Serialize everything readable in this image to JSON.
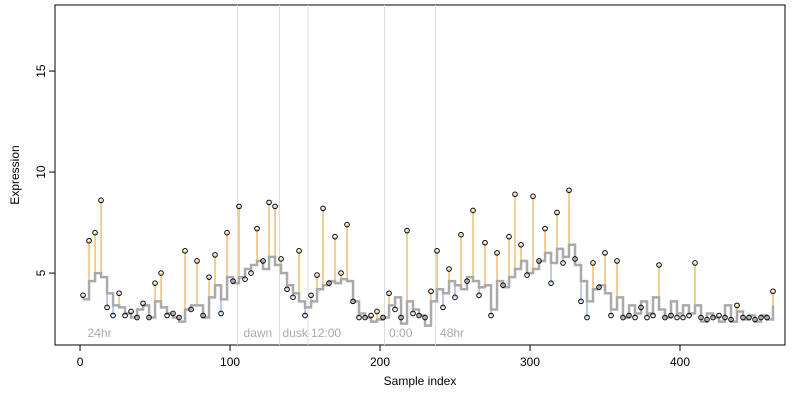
{
  "chart_data": {
    "type": "scatter",
    "xlabel": "Sample index",
    "ylabel": "Expression",
    "xlim": [
      -16.7,
      470
    ],
    "ylim": [
      1.44,
      18.27
    ],
    "xticks": [
      0,
      100,
      200,
      300,
      400
    ],
    "yticks": [
      5,
      10,
      15
    ],
    "grid": false,
    "step_line": true,
    "above_color": "#e8a020",
    "below_color": "#6f9ad8",
    "vline_color": "#dddddd",
    "vlines": [
      105,
      133,
      152,
      203,
      237
    ],
    "annotations": [
      {
        "text": "24hr",
        "x": 3
      },
      {
        "text": "dawn",
        "x": 107
      },
      {
        "text": "dusk",
        "x": 133
      },
      {
        "text": "12:00",
        "x": 152
      },
      {
        "text": "0:00",
        "x": 204
      },
      {
        "text": "48hr",
        "x": 238
      }
    ],
    "x": [
      2,
      6,
      10,
      14,
      18,
      22,
      26,
      30,
      34,
      38,
      42,
      46,
      50,
      54,
      58,
      62,
      66,
      70,
      74,
      78,
      82,
      86,
      90,
      94,
      98,
      102,
      106,
      110,
      114,
      118,
      122,
      126,
      130,
      134,
      138,
      142,
      146,
      150,
      154,
      158,
      162,
      166,
      170,
      174,
      178,
      182,
      186,
      190,
      194,
      198,
      202,
      206,
      210,
      214,
      218,
      222,
      226,
      230,
      234,
      238,
      242,
      246,
      250,
      254,
      258,
      262,
      266,
      270,
      274,
      278,
      282,
      286,
      290,
      294,
      298,
      302,
      306,
      310,
      314,
      318,
      322,
      326,
      330,
      334,
      338,
      342,
      346,
      350,
      354,
      358,
      362,
      366,
      370,
      374,
      378,
      382,
      386,
      390,
      394,
      398,
      402,
      406,
      410,
      414,
      418,
      422,
      426,
      430,
      434,
      438,
      442,
      446,
      450,
      454,
      458,
      462
    ],
    "series": [
      {
        "color": "#aaaaaa",
        "values": [
          3.7,
          4.6,
          5.0,
          4.8,
          4.0,
          3.4,
          3.3,
          3.0,
          2.8,
          3.2,
          3.4,
          2.8,
          3.6,
          3.3,
          3.0,
          2.8,
          2.6,
          3.2,
          3.4,
          3.4,
          2.8,
          3.8,
          4.4,
          3.7,
          4.8,
          4.5,
          4.8,
          5.2,
          5.4,
          5.6,
          5.2,
          5.8,
          5.4,
          5.0,
          4.4,
          4.0,
          3.6,
          3.3,
          3.6,
          4.2,
          4.4,
          4.6,
          4.5,
          4.7,
          4.6,
          3.6,
          3.0,
          2.8,
          2.6,
          2.7,
          2.8,
          3.4,
          3.8,
          2.5,
          3.6,
          3.2,
          2.9,
          2.4,
          3.6,
          4.2,
          4.0,
          4.6,
          4.4,
          4.2,
          4.8,
          4.6,
          4.3,
          4.4,
          3.2,
          4.6,
          4.3,
          4.8,
          5.2,
          5.6,
          5.0,
          5.2,
          5.6,
          6.0,
          5.5,
          6.2,
          5.8,
          6.4,
          5.4,
          4.6,
          3.6,
          4.2,
          4.4,
          4.0,
          3.2,
          3.8,
          2.8,
          3.4,
          3.0,
          3.6,
          3.0,
          3.8,
          3.2,
          2.8,
          3.6,
          3.0,
          3.4,
          3.0,
          3.4,
          2.6,
          3.0,
          2.8,
          2.6,
          3.4,
          2.6,
          3.1,
          2.7,
          2.9,
          2.6,
          2.9,
          2.7,
          3.4
        ]
      },
      {
        "color": "#000000",
        "values": [
          3.9,
          6.6,
          7.0,
          8.6,
          3.3,
          2.9,
          4.0,
          2.9,
          3.1,
          2.8,
          3.5,
          2.8,
          4.5,
          5.0,
          2.9,
          3.0,
          2.8,
          6.1,
          3.2,
          5.6,
          2.9,
          4.8,
          5.9,
          3.0,
          7.0,
          4.6,
          8.3,
          4.7,
          5.0,
          7.2,
          5.6,
          8.5,
          8.3,
          5.7,
          4.2,
          3.8,
          6.1,
          2.9,
          3.9,
          4.9,
          8.2,
          4.5,
          6.8,
          5.0,
          7.4,
          3.6,
          2.8,
          2.8,
          2.9,
          3.1,
          2.8,
          4.0,
          3.2,
          2.8,
          7.1,
          3.0,
          2.9,
          2.8,
          4.1,
          6.1,
          3.3,
          5.2,
          3.8,
          6.9,
          4.6,
          8.1,
          3.9,
          6.5,
          2.9,
          6.0,
          4.4,
          6.8,
          8.9,
          6.4,
          4.9,
          8.8,
          5.6,
          7.2,
          4.5,
          8.0,
          5.5,
          9.1,
          5.7,
          3.6,
          2.8,
          5.5,
          4.3,
          6.0,
          2.9,
          5.6,
          2.8,
          2.9,
          2.8,
          3.3,
          2.8,
          2.9,
          5.4,
          2.8,
          2.9,
          2.8,
          2.8,
          2.9,
          5.5,
          2.8,
          2.7,
          2.8,
          2.9,
          2.8,
          2.7,
          3.4,
          2.8,
          2.8,
          2.7,
          2.8,
          2.8,
          4.1
        ]
      }
    ]
  }
}
